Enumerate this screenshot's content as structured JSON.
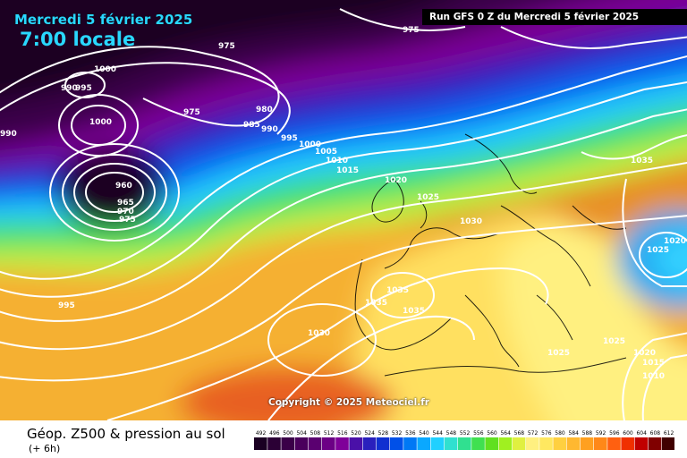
{
  "header": {
    "date": "Mercredi 5 février 2025",
    "time": "7:00 locale",
    "run": "Run GFS 0 Z du Mercredi 5 février 2025"
  },
  "copyright": "Copyright © 2025 Meteociel.fr",
  "footer": {
    "title": "Géop. Z500 & pression au sol",
    "subtitle": "(+ 6h)"
  },
  "legend": {
    "values": [
      "492",
      "496",
      "500",
      "504",
      "508",
      "512",
      "516",
      "520",
      "524",
      "528",
      "532",
      "536",
      "540",
      "544",
      "548",
      "552",
      "556",
      "560",
      "564",
      "568",
      "572",
      "576",
      "580",
      "584",
      "588",
      "592",
      "596",
      "600",
      "604",
      "608",
      "612"
    ],
    "colors": [
      "#1a0022",
      "#2b0035",
      "#3a0048",
      "#4a005c",
      "#5a0070",
      "#6c0085",
      "#7f0099",
      "#4a10a8",
      "#2a20bd",
      "#1030d0",
      "#0050e8",
      "#0078f5",
      "#0aa8ff",
      "#20d0ff",
      "#30e0d0",
      "#30e090",
      "#40e050",
      "#60e020",
      "#a0f020",
      "#e0f040",
      "#fff080",
      "#ffe860",
      "#ffd040",
      "#ffb830",
      "#ffa020",
      "#ff8818",
      "#ff6010",
      "#f03000",
      "#c00000",
      "#800000",
      "#400000"
    ]
  },
  "isobar_labels": [
    "975",
    "975",
    "1000",
    "990",
    "995",
    "1000",
    "975",
    "980",
    "985",
    "990",
    "995",
    "1000",
    "1005",
    "1010",
    "1015",
    "1020",
    "1025",
    "1030",
    "960",
    "965",
    "970",
    "975",
    "995",
    "1030",
    "1035",
    "1035",
    "1035",
    "1035",
    "1025",
    "1020",
    "1025",
    "1025",
    "1020",
    "1015",
    "1010",
    "990"
  ],
  "colors": {
    "header_accent": "#29d8ff",
    "run_bar": "#000000"
  }
}
